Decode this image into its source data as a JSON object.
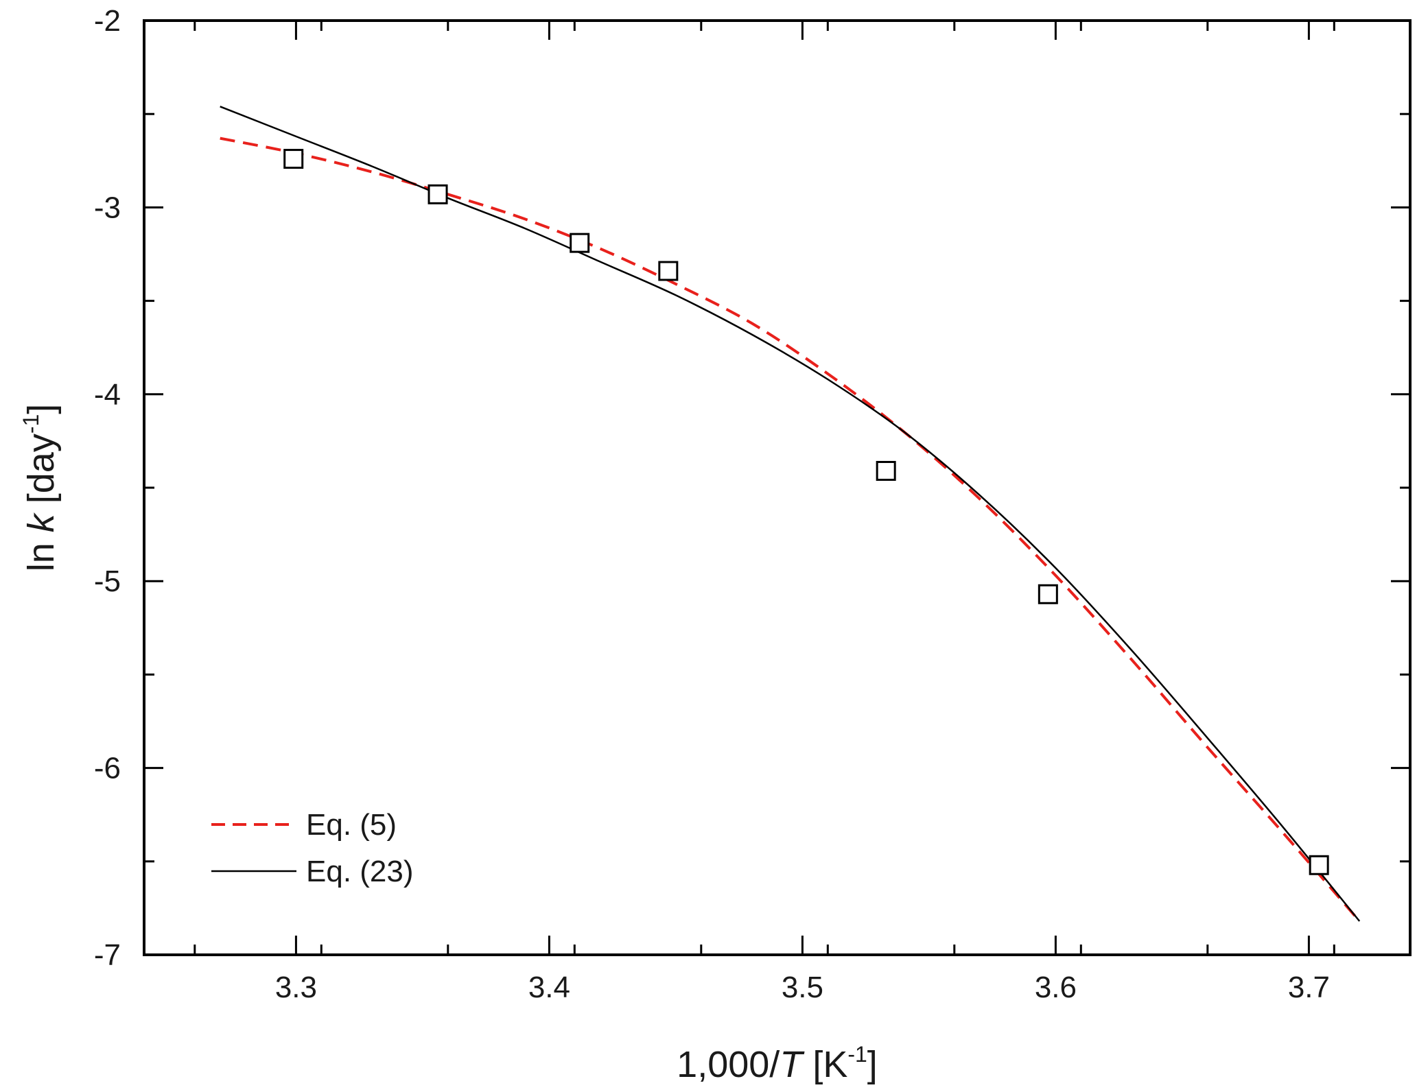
{
  "chart_data": {
    "type": "line",
    "title": "",
    "xlabel": {
      "parts": [
        "1,000/",
        "T",
        " [K",
        "-1",
        "]"
      ]
    },
    "ylabel": {
      "parts": [
        "ln ",
        "k",
        "  [day",
        "-1",
        "]"
      ]
    },
    "xlim": [
      3.24,
      3.74
    ],
    "ylim": [
      -7,
      -2
    ],
    "x_ticks": [
      3.3,
      3.4,
      3.5,
      3.6,
      3.7
    ],
    "x_tick_labels": [
      "3.3",
      "3.4",
      "3.5",
      "3.6",
      "3.7"
    ],
    "y_ticks": [
      -2,
      -3,
      -4,
      -5,
      -6,
      -7
    ],
    "y_tick_labels": [
      "-2",
      "-3",
      "-4",
      "-5",
      "-6",
      "-7"
    ],
    "grid": false,
    "legend_position": "bottom-left",
    "scatter": {
      "marker": "open-square",
      "points": [
        [
          3.299,
          -2.74
        ],
        [
          3.356,
          -2.93
        ],
        [
          3.412,
          -3.19
        ],
        [
          3.447,
          -3.34
        ],
        [
          3.533,
          -4.41
        ],
        [
          3.597,
          -5.07
        ],
        [
          3.704,
          -6.52
        ]
      ]
    },
    "series": [
      {
        "name": "Eq. (5)",
        "style": "dashed",
        "color": "#e8211c",
        "x": [
          3.27,
          3.3,
          3.33,
          3.36,
          3.39,
          3.42,
          3.45,
          3.48,
          3.51,
          3.54,
          3.57,
          3.6,
          3.63,
          3.66,
          3.69,
          3.72
        ],
        "y": [
          -2.63,
          -2.71,
          -2.81,
          -2.93,
          -3.06,
          -3.22,
          -3.41,
          -3.62,
          -3.89,
          -4.2,
          -4.56,
          -4.97,
          -5.42,
          -5.89,
          -6.35,
          -6.82
        ]
      },
      {
        "name": "Eq. (23)",
        "style": "solid",
        "color": "#000000",
        "x": [
          3.27,
          3.3,
          3.33,
          3.36,
          3.39,
          3.42,
          3.45,
          3.48,
          3.51,
          3.54,
          3.57,
          3.6,
          3.63,
          3.66,
          3.69,
          3.72
        ],
        "y": [
          -2.46,
          -2.62,
          -2.78,
          -2.95,
          -3.11,
          -3.29,
          -3.47,
          -3.68,
          -3.92,
          -4.2,
          -4.54,
          -4.93,
          -5.37,
          -5.84,
          -6.32,
          -6.82
        ]
      }
    ]
  }
}
